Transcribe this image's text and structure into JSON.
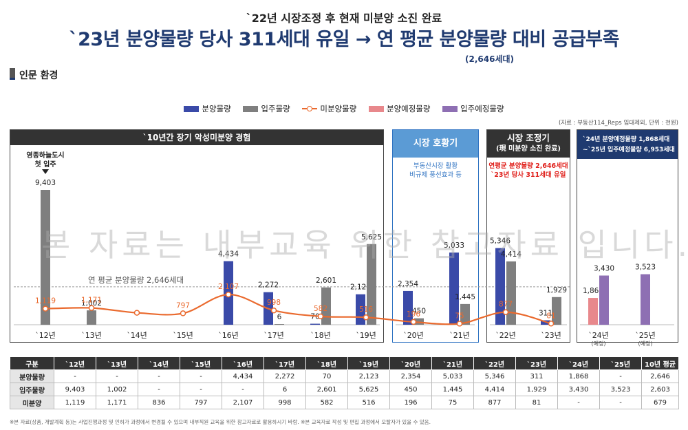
{
  "header": {
    "subtitle": "`22년 시장조정 후 현재 미분양 소진 완료",
    "title": "`23년 분양물량 당사 311세대 유일 → 연 평균 분양물량 대비 공급부족",
    "title_note": "(2,646세대)",
    "section": "인문 환경"
  },
  "source": "(자료 : 부동산114_Reps 임대제외, 단위 : 천원)",
  "watermark": "본 자료는 내부교육 위한 참고자료 입니다.",
  "panels": {
    "p1_title": "`10년간 장기 악성미분양 경험",
    "p1_annot_line1": "영종하늘도시",
    "p1_annot_line2": "첫 입주",
    "p2_title": "시장 호황기",
    "p2_note1": "부동산시장 활황",
    "p2_note2": "비규제 풍선효과 등",
    "p3_title": "시장 조정기",
    "p3_sub": "(現 미분양 소진 완료)",
    "p3_note1": "연평균 분양물량 2,646세대",
    "p3_note2": "`23년 당사 311세대 유일",
    "p4_line1": "`24년 분양예정물량 1,868세대",
    "p4_line2": "~`25년 입주예정물량 6,953세대"
  },
  "colors": {
    "supply": "#3a4aa8",
    "moveIn": "#7f7f7f",
    "unsold": "#ea6a2e",
    "plannedSupply": "#e8888c",
    "plannedMoveIn": "#8e6fb3"
  },
  "chart_data": {
    "type": "bar",
    "categories": [
      "`12년",
      "`13년",
      "`14년",
      "`15년",
      "`16년",
      "`17년",
      "`18년",
      "`19년",
      "`20년",
      "`21년",
      "`22년",
      "`23년",
      "`24년",
      "`25년"
    ],
    "category_notes": [
      "",
      "",
      "",
      "",
      "",
      "",
      "",
      "",
      "",
      "",
      "",
      "",
      "(예정)",
      "(예정)"
    ],
    "legend": [
      "분양물량",
      "입주물량",
      "미분양물량",
      "분양예정물량",
      "입주예정물량"
    ],
    "series": [
      {
        "name": "분양물량",
        "type": "bar",
        "values": [
          null,
          null,
          null,
          null,
          4434,
          2272,
          70,
          2123,
          2354,
          5033,
          5346,
          311,
          null,
          null
        ]
      },
      {
        "name": "입주물량",
        "type": "bar",
        "values": [
          9403,
          1002,
          null,
          null,
          null,
          6,
          2601,
          5625,
          450,
          1445,
          4414,
          1929,
          null,
          null
        ]
      },
      {
        "name": "미분양물량",
        "type": "line",
        "values": [
          1119,
          1171,
          836,
          797,
          2107,
          998,
          582,
          516,
          196,
          75,
          877,
          81,
          null,
          null
        ]
      },
      {
        "name": "분양예정물량",
        "type": "bar",
        "values": [
          null,
          null,
          null,
          null,
          null,
          null,
          null,
          null,
          null,
          null,
          null,
          null,
          1868,
          null
        ]
      },
      {
        "name": "입주예정물량",
        "type": "bar",
        "values": [
          null,
          null,
          null,
          null,
          null,
          null,
          null,
          null,
          null,
          null,
          null,
          null,
          3430,
          3523
        ]
      }
    ],
    "unsold_labels_shown": [
      true,
      true,
      false,
      true,
      true,
      true,
      true,
      true,
      true,
      true,
      true,
      true,
      false,
      false
    ],
    "reference_line": {
      "value": 2646,
      "label": "연 평균 분양물량 2,646세대"
    },
    "ylim": [
      0,
      10000
    ]
  },
  "table": {
    "header": [
      "구분",
      "`12년",
      "`13년",
      "`14년",
      "`15년",
      "`16년",
      "`17년",
      "`18년",
      "`19년",
      "`20년",
      "`21년",
      "`22년",
      "`23년",
      "`24년",
      "`25년",
      "10년 평균"
    ],
    "rows": [
      [
        "분양물량",
        "-",
        "-",
        "-",
        "-",
        "4,434",
        "2,272",
        "70",
        "2,123",
        "2,354",
        "5,033",
        "5,346",
        "311",
        "1,868",
        "-",
        "2,646"
      ],
      [
        "입주물량",
        "9,403",
        "1,002",
        "-",
        "-",
        "-",
        "6",
        "2,601",
        "5,625",
        "450",
        "1,445",
        "4,414",
        "1,929",
        "3,430",
        "3,523",
        "2,603"
      ],
      [
        "미분양",
        "1,119",
        "1,171",
        "836",
        "797",
        "2,107",
        "998",
        "582",
        "516",
        "196",
        "75",
        "877",
        "81",
        "-",
        "-",
        "679"
      ]
    ]
  },
  "footnote": "※본 자료(상품, 개발계획 등)는 사업진행과정 및 인허가 과정에서 변경될 수 있으며 내부직원 교육을 위한 참고자료로 활용하시기 바람. ※본 교육자료 작성 및 편집 과정에서 오탈자가 있을 수 있음."
}
